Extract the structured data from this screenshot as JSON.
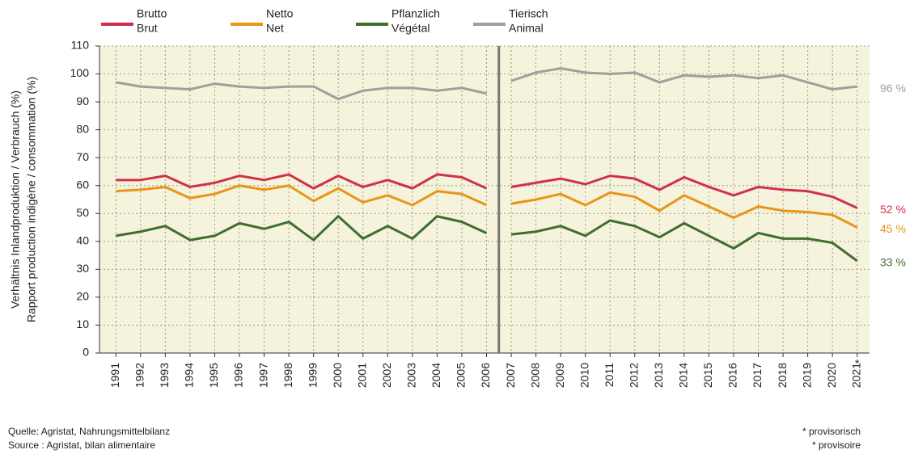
{
  "chart_data": {
    "type": "line",
    "ylabel": [
      "Verhältnis Inlandproduktion / Verbrauch (%)",
      "Rapport production indigène / consommation (%)"
    ],
    "categories": [
      "1991",
      "1992",
      "1993",
      "1994",
      "1995",
      "1996",
      "1997",
      "1998",
      "1999",
      "2000",
      "2001",
      "2002",
      "2003",
      "2004",
      "2005",
      "2006",
      "2007",
      "2008",
      "2009",
      "2010",
      "2011",
      "2012",
      "2013",
      "2014",
      "2015",
      "2016",
      "2017",
      "2018",
      "2019",
      "2020",
      "2021"
    ],
    "break_after": "2006",
    "provisional_mark": "*",
    "series": [
      {
        "name": [
          "Brutto",
          "Brut"
        ],
        "color": "#d0314a",
        "end_label": "52 %",
        "values": [
          62,
          62,
          63.5,
          59.5,
          61,
          63.5,
          62,
          64,
          59,
          63.5,
          59.5,
          62,
          59,
          64,
          63,
          59,
          59.5,
          61,
          62.5,
          60.5,
          63.5,
          62.5,
          58.5,
          63,
          59.5,
          56.5,
          59.5,
          58.5,
          58,
          56,
          52
        ]
      },
      {
        "name": [
          "Netto",
          "Net"
        ],
        "color": "#e8951a",
        "end_label": "45 %",
        "values": [
          58,
          58.5,
          59.5,
          55.5,
          57,
          60,
          58.5,
          60,
          54.5,
          59,
          54,
          56.5,
          53,
          58,
          57,
          53,
          53.5,
          55,
          57,
          53,
          57.5,
          56,
          51,
          56.5,
          52.5,
          48.5,
          52.5,
          51,
          50.5,
          49.5,
          45
        ]
      },
      {
        "name": [
          "Pflanzlich",
          "Végétal"
        ],
        "color": "#3f6e2e",
        "end_label": "33 %",
        "values": [
          42,
          43.5,
          45.5,
          40.5,
          42,
          46.5,
          44.5,
          47,
          40.5,
          49,
          41,
          45.5,
          41,
          49,
          47,
          43,
          42.5,
          43.5,
          45.5,
          42,
          47.5,
          45.5,
          41.5,
          46.5,
          42,
          37.5,
          43,
          41,
          41,
          39.5,
          33
        ]
      },
      {
        "name": [
          "Tierisch",
          "Animal"
        ],
        "color": "#a0a09a",
        "end_label": "96 %",
        "values": [
          97,
          95.5,
          95,
          94.5,
          96.5,
          95.5,
          95,
          95.5,
          95.5,
          91,
          94,
          95,
          95,
          94,
          95,
          93,
          97.5,
          100.5,
          102,
          100.5,
          100,
          100.5,
          97,
          99.5,
          99,
          99.5,
          98.5,
          99.5,
          97,
          94.5,
          95.5
        ]
      }
    ],
    "ylim": [
      0,
      110
    ],
    "yticks": [
      0,
      10,
      20,
      30,
      40,
      50,
      60,
      70,
      80,
      90,
      100,
      110
    ],
    "grid": true,
    "sources": [
      "Quelle: Agristat, Nahrungsmittelbilanz",
      "Source : Agristat, bilan alimentaire"
    ],
    "footnotes": [
      "* provisorisch",
      "* provisoire"
    ]
  }
}
